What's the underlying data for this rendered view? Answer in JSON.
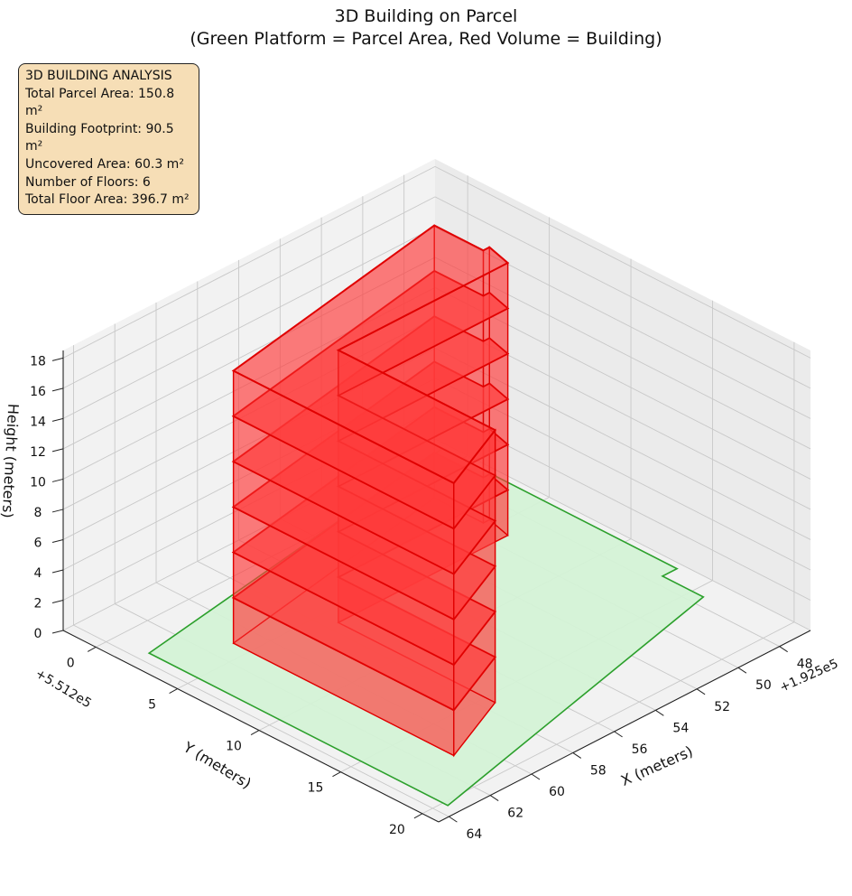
{
  "title_line1": "3D Building on Parcel",
  "title_line2": "(Green Platform = Parcel Area, Red Volume = Building)",
  "info": {
    "heading": "3D BUILDING ANALYSIS",
    "parcel_area": "Total Parcel Area: 150.8 m²",
    "footprint": "Building Footprint: 90.5 m²",
    "uncovered": "Uncovered Area: 60.3 m²",
    "floors": "Number of Floors: 6",
    "floor_area": "Total Floor Area: 396.7 m²"
  },
  "colors": {
    "building_face": "#ff3b3b",
    "building_edge": "#e00000",
    "parcel_face": "#d4f2d6",
    "parcel_edge": "#2ca02c",
    "pane": "#f2f2f2",
    "grid": "#c8c8c8",
    "info_bg": "#f6deb6"
  },
  "chart_data": {
    "type": "3d-extruded-polygon",
    "xlabel": "X (meters)",
    "ylabel": "Y (meters)",
    "zlabel": "Height (meters)",
    "x_offset": "+1.925e5",
    "y_offset": "+5.512e5",
    "x_ticks": [
      "48",
      "50",
      "52",
      "54",
      "56",
      "58",
      "60",
      "62",
      "64"
    ],
    "y_ticks": [
      "0",
      "5",
      "10",
      "15",
      "20"
    ],
    "z_ticks": [
      "0",
      "2",
      "4",
      "6",
      "8",
      "10",
      "12",
      "14",
      "16",
      "18"
    ],
    "xlim": [
      46.5,
      64.5
    ],
    "ylim": [
      -2,
      21
    ],
    "zlim": [
      0,
      18.5
    ],
    "grid": true,
    "parcel_polygon": [
      [
        46.8,
        -1.2
      ],
      [
        63.5,
        2.0
      ],
      [
        63.5,
        20.3
      ],
      [
        47.5,
        15.7
      ],
      [
        47.5,
        13.2
      ],
      [
        46.8,
        13.2
      ]
    ],
    "building": {
      "number_of_floors": 6,
      "floor_heights": [
        0,
        3,
        6,
        9,
        12,
        15,
        18
      ],
      "footprint_polygon": [
        [
          49.3,
          1.5
        ],
        [
          61.0,
          4.0
        ],
        [
          61.0,
          17.5
        ],
        [
          57.5,
          15.6
        ],
        [
          57.5,
          6.0
        ],
        [
          49.3,
          6.0
        ],
        [
          49.0,
          4.5
        ],
        [
          49.3,
          4.5
        ]
      ]
    },
    "stats": {
      "total_parcel_area_m2": 150.8,
      "building_footprint_m2": 90.5,
      "uncovered_area_m2": 60.3,
      "number_of_floors": 6,
      "total_floor_area_m2": 396.7
    }
  }
}
